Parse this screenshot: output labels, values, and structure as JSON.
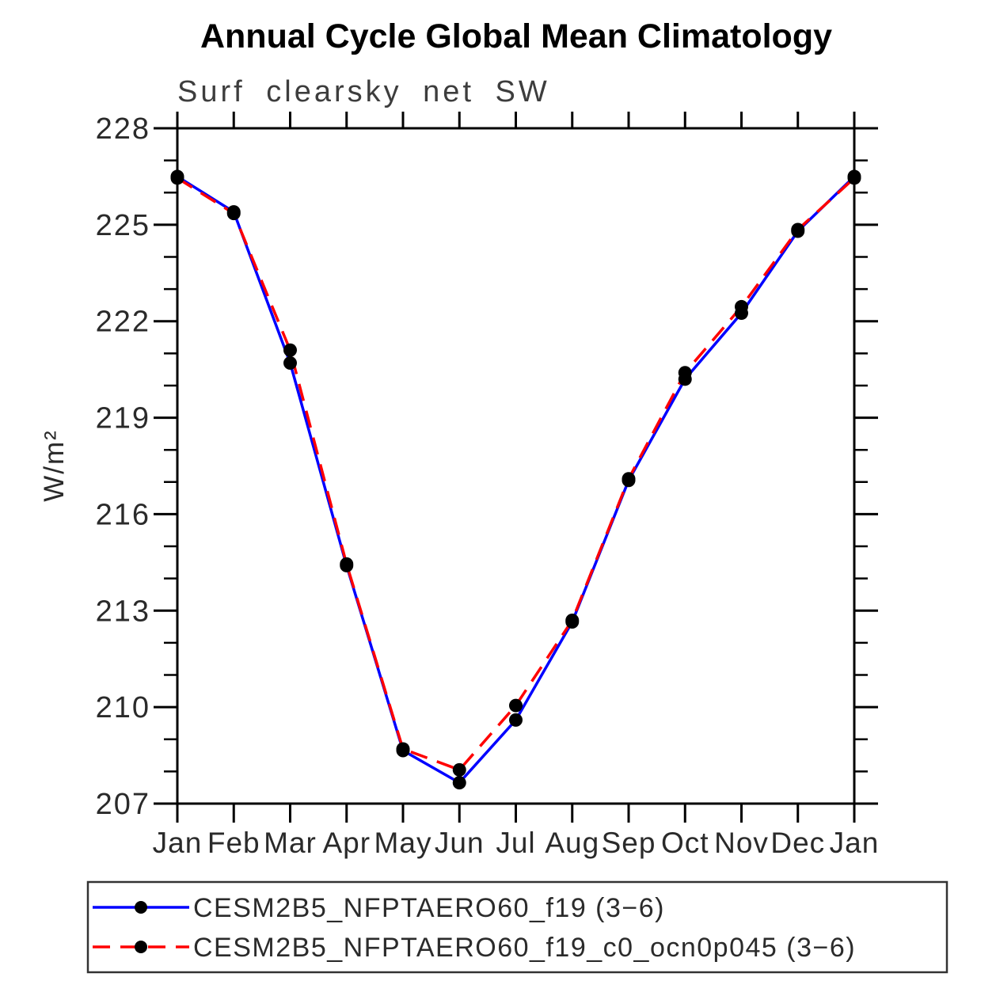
{
  "chart_data": {
    "type": "line",
    "title": "Annual Cycle Global Mean Climatology",
    "subtitle": "Surf clearsky net SW",
    "ylabel": "W/m²",
    "xlabel": "",
    "categories": [
      "Jan",
      "Feb",
      "Mar",
      "Apr",
      "May",
      "Jun",
      "Jul",
      "Aug",
      "Sep",
      "Oct",
      "Nov",
      "Dec",
      "Jan"
    ],
    "ylim": [
      207,
      228
    ],
    "yticks": [
      207,
      210,
      213,
      216,
      219,
      222,
      225,
      228
    ],
    "ytick_minor_step": 1,
    "grid": "off",
    "legend_position": "bottom",
    "frame_color": "#000000",
    "marker_color": "#000000",
    "series": [
      {
        "name": "CESM2B5_NFPTAERO60_f19 (3−6)",
        "color": "#0000ff",
        "style": "solid",
        "marker": "circle",
        "values": [
          226.5,
          225.4,
          220.7,
          214.4,
          208.65,
          207.65,
          209.6,
          212.65,
          217.05,
          220.2,
          222.25,
          224.8,
          226.5
        ]
      },
      {
        "name": "CESM2B5_NFPTAERO60_f19_c0_ocn0p045 (3−6)",
        "color": "#ff0000",
        "style": "dashed",
        "marker": "circle",
        "values": [
          226.45,
          225.35,
          221.1,
          214.45,
          208.7,
          208.05,
          210.05,
          212.7,
          217.1,
          220.4,
          222.45,
          224.85,
          226.45
        ]
      }
    ]
  }
}
